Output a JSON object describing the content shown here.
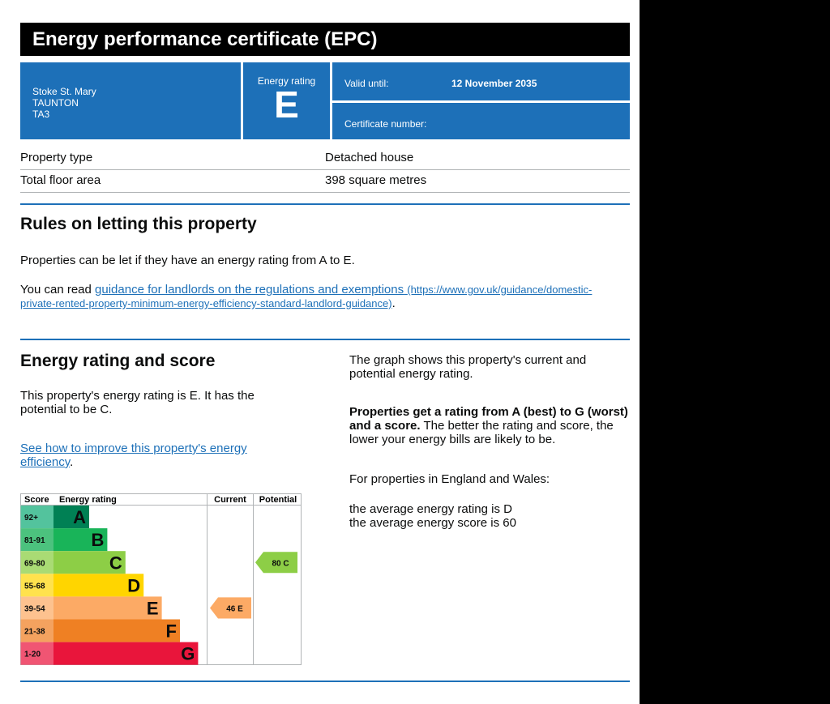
{
  "header": {
    "title": "Energy performance certificate (EPC)"
  },
  "address": {
    "line1": "Stoke St. Mary",
    "line2": "TAUNTON",
    "line3": "TA3"
  },
  "energy_rating": {
    "label": "Energy rating",
    "value": "E"
  },
  "valid_until": {
    "label": "Valid until:",
    "value": "12 November 2035"
  },
  "certificate_number": {
    "label": "Certificate number:",
    "value": ""
  },
  "property": {
    "type_label": "Property type",
    "type_value": "Detached house",
    "area_label": "Total floor area",
    "area_value": "398 square metres"
  },
  "letting": {
    "heading": "Rules on letting this property",
    "p1": "Properties can be let if they have an energy rating from A to E.",
    "p2_prefix": "You can read ",
    "p2_link": "guidance for landlords on the regulations and exemptions",
    "p2_url_line1": "(https://www.gov.uk/guidance/domestic-",
    "p2_url_line2": "private-rented-property-minimum-energy-efficiency-standard-landlord-guidance)",
    "p2_suffix": "."
  },
  "score": {
    "heading": "Energy rating and score",
    "p1": "This property's energy rating is E. It has the potential to be C.",
    "link": "See how to improve this property's energy efficiency",
    "link_suffix": ".",
    "right_p1": "The graph shows this property's current and potential energy rating.",
    "right_p2_bold": "Properties get a rating from A (best) to G (worst) and a score.",
    "right_p2_rest": " The better the rating and score, the lower your energy bills are likely to be.",
    "right_p3": "For properties in England and Wales:",
    "avg_rating": "the average energy rating is D",
    "avg_score": "the average energy score is 60"
  },
  "chart_data": {
    "type": "table",
    "headers": {
      "score": "Score",
      "rating": "Energy rating",
      "current": "Current",
      "potential": "Potential"
    },
    "bands": [
      {
        "range": "92+",
        "letter": "A",
        "color": "#008054"
      },
      {
        "range": "81-91",
        "letter": "B",
        "color": "#19b459"
      },
      {
        "range": "69-80",
        "letter": "C",
        "color": "#8dce46"
      },
      {
        "range": "55-68",
        "letter": "D",
        "color": "#ffd500"
      },
      {
        "range": "39-54",
        "letter": "E",
        "color": "#fcaa65"
      },
      {
        "range": "21-38",
        "letter": "F",
        "color": "#ef8023"
      },
      {
        "range": "1-20",
        "letter": "G",
        "color": "#e9153b"
      }
    ],
    "current": {
      "score": 46,
      "letter": "E",
      "label": "46 E"
    },
    "potential": {
      "score": 80,
      "letter": "C",
      "label": "80 C"
    }
  }
}
